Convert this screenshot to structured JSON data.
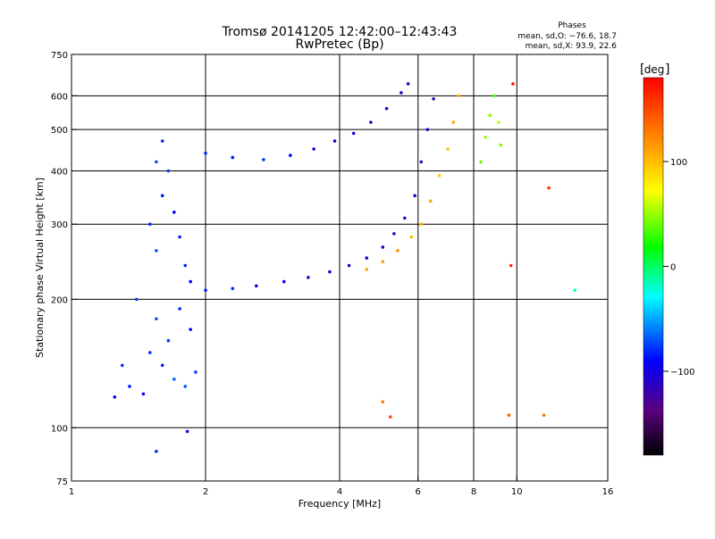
{
  "chart_data": {
    "type": "scatter",
    "title_line1": "Tromsø 20141205 12:42:00–12:43:43",
    "title_line2": "RwPretec (Bp)",
    "stats": {
      "heading": "Phases",
      "line_o": "mean, sd,O: −76.6, 18.7",
      "line_x": "mean, sd,X:  93.9, 22.6"
    },
    "xlabel": "Frequency [MHz]",
    "ylabel": "Stationary phase Virtual Height [km]",
    "x_scale": "log",
    "y_scale": "log",
    "xlim": [
      1,
      16
    ],
    "ylim": [
      75,
      750
    ],
    "x_ticks": [
      {
        "value": 1,
        "label": "1"
      },
      {
        "value": 2,
        "label": "2"
      },
      {
        "value": 4,
        "label": "4"
      },
      {
        "value": 6,
        "label": "6"
      },
      {
        "value": 8,
        "label": "8"
      },
      {
        "value": 10,
        "label": "10"
      },
      {
        "value": 16,
        "label": "16"
      }
    ],
    "x_grid": [
      2,
      4,
      6,
      8,
      10
    ],
    "y_ticks": [
      {
        "value": 75,
        "label": "75"
      },
      {
        "value": 100,
        "label": "100"
      },
      {
        "value": 200,
        "label": "200"
      },
      {
        "value": 300,
        "label": "300"
      },
      {
        "value": 400,
        "label": "400"
      },
      {
        "value": 500,
        "label": "500"
      },
      {
        "value": 600,
        "label": "600"
      },
      {
        "value": 750,
        "label": "750"
      }
    ],
    "y_grid": [
      100,
      200,
      300,
      400,
      500,
      600
    ],
    "colorbar": {
      "label": "deg",
      "range": [
        -180,
        180
      ],
      "ticks": [
        {
          "value": 100,
          "label": "100"
        },
        {
          "value": 0,
          "label": "0"
        },
        {
          "value": -100,
          "label": "−100"
        }
      ]
    },
    "series": [
      {
        "points": [
          [
            1.45,
            120,
            -90
          ],
          [
            1.5,
            150,
            -80
          ],
          [
            1.55,
            180,
            -70
          ],
          [
            1.6,
            140,
            -85
          ],
          [
            1.65,
            160,
            -75
          ],
          [
            1.7,
            130,
            -65
          ],
          [
            1.75,
            190,
            -80
          ],
          [
            1.8,
            125,
            -70
          ],
          [
            1.85,
            170,
            -90
          ],
          [
            1.9,
            135,
            -75
          ],
          [
            1.35,
            125,
            -85
          ],
          [
            1.3,
            140,
            -80
          ],
          [
            1.25,
            118,
            -90
          ],
          [
            1.4,
            200,
            -75
          ],
          [
            1.55,
            260,
            -70
          ],
          [
            1.5,
            300,
            -80
          ],
          [
            1.6,
            350,
            -85
          ],
          [
            1.55,
            420,
            -70
          ],
          [
            1.6,
            470,
            -80
          ],
          [
            1.65,
            400,
            -75
          ],
          [
            1.7,
            320,
            -90
          ],
          [
            1.75,
            280,
            -85
          ],
          [
            1.8,
            240,
            -80
          ],
          [
            1.85,
            220,
            -90
          ]
        ]
      },
      {
        "points": [
          [
            2.0,
            210,
            -85
          ],
          [
            2.3,
            212,
            -80
          ],
          [
            2.6,
            215,
            -95
          ],
          [
            3.0,
            220,
            -100
          ],
          [
            3.4,
            225,
            -110
          ],
          [
            3.8,
            232,
            -105
          ],
          [
            4.2,
            240,
            -110
          ],
          [
            4.6,
            250,
            -115
          ],
          [
            5.0,
            265,
            -110
          ],
          [
            5.3,
            285,
            -115
          ],
          [
            5.6,
            310,
            -120
          ],
          [
            5.9,
            350,
            -115
          ],
          [
            6.1,
            420,
            -120
          ],
          [
            6.3,
            500,
            -110
          ],
          [
            6.5,
            590,
            -115
          ]
        ]
      },
      {
        "points": [
          [
            2.0,
            440,
            -80
          ],
          [
            2.3,
            430,
            -85
          ],
          [
            2.7,
            425,
            -75
          ],
          [
            3.1,
            435,
            -90
          ],
          [
            3.5,
            450,
            -100
          ],
          [
            3.9,
            470,
            -105
          ],
          [
            4.3,
            490,
            -100
          ],
          [
            4.7,
            520,
            -110
          ],
          [
            5.1,
            560,
            -105
          ],
          [
            5.5,
            610,
            -115
          ],
          [
            5.7,
            640,
            -110
          ]
        ]
      },
      {
        "points": [
          [
            4.6,
            235,
            110
          ],
          [
            5.0,
            245,
            115
          ],
          [
            5.4,
            260,
            120
          ],
          [
            5.8,
            280,
            100
          ],
          [
            6.1,
            300,
            105
          ],
          [
            6.4,
            340,
            110
          ],
          [
            6.7,
            390,
            95
          ],
          [
            7.0,
            450,
            100
          ],
          [
            7.2,
            520,
            110
          ],
          [
            7.4,
            600,
            105
          ]
        ]
      },
      {
        "points": [
          [
            8.3,
            420,
            40
          ],
          [
            8.5,
            480,
            50
          ],
          [
            8.7,
            540,
            45
          ],
          [
            8.9,
            600,
            35
          ],
          [
            9.1,
            520,
            55
          ],
          [
            9.2,
            460,
            45
          ]
        ]
      },
      {
        "points": [
          [
            5.0,
            115,
            130
          ],
          [
            5.2,
            106,
            150
          ],
          [
            9.6,
            107,
            140
          ],
          [
            11.5,
            107,
            130
          ],
          [
            11.8,
            365,
            160
          ],
          [
            13.5,
            210,
            -10
          ],
          [
            9.8,
            640,
            170
          ],
          [
            9.7,
            240,
            160
          ],
          [
            1.55,
            88,
            -80
          ],
          [
            1.82,
            98,
            -100
          ]
        ]
      }
    ]
  }
}
